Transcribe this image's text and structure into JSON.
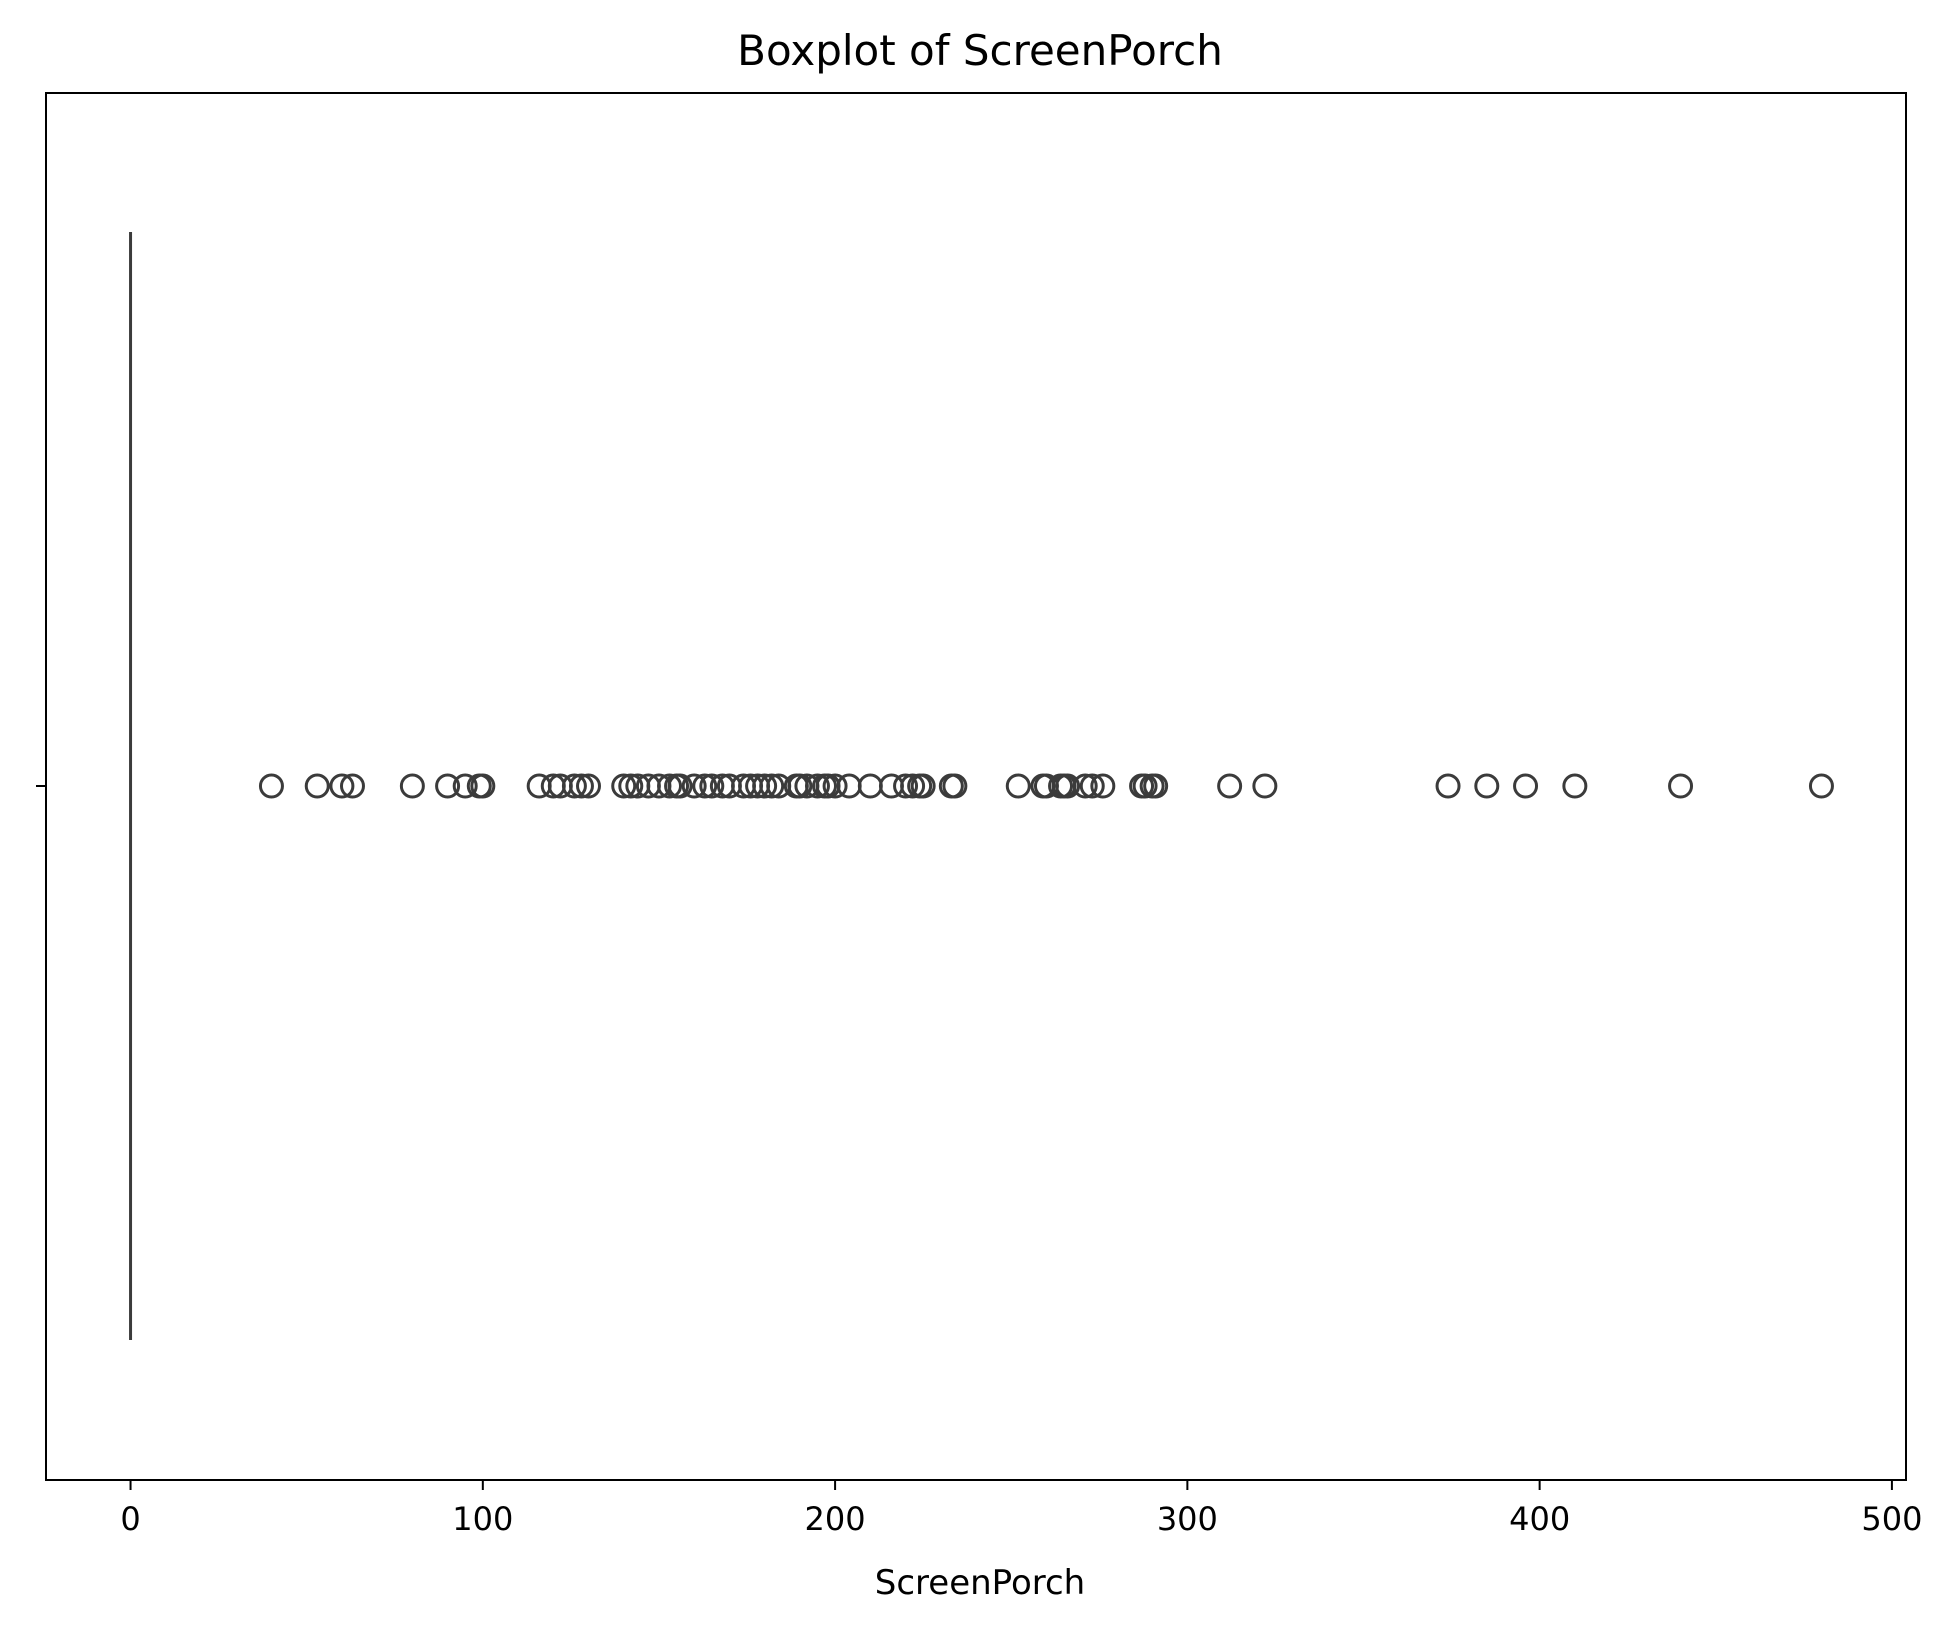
{
  "chart_data": {
    "type": "boxplot",
    "orientation": "horizontal",
    "title": "Boxplot of ScreenPorch",
    "xlabel": "ScreenPorch",
    "ylabel": "",
    "xlim": [
      -24,
      504
    ],
    "x_ticks": [
      0,
      100,
      200,
      300,
      400,
      500
    ],
    "x_tick_labels": [
      "0",
      "100",
      "200",
      "300",
      "400",
      "500"
    ],
    "grid": false,
    "box": {
      "min": 0,
      "q1": 0,
      "median": 0,
      "q3": 0,
      "max": 0
    },
    "outliers": [
      40,
      53,
      60,
      63,
      80,
      90,
      95,
      99,
      100,
      116,
      120,
      122,
      126,
      128,
      130,
      140,
      142,
      144,
      147,
      150,
      153,
      155,
      156,
      160,
      163,
      165,
      168,
      170,
      174,
      176,
      178,
      180,
      182,
      184,
      189,
      190,
      192,
      195,
      197,
      198,
      200,
      204,
      210,
      216,
      220,
      222,
      224,
      225,
      233,
      234,
      252,
      259,
      260,
      264,
      265,
      266,
      271,
      273,
      276,
      287,
      288,
      290,
      291,
      312,
      322,
      374,
      385,
      396,
      410,
      440,
      480
    ],
    "colors": {
      "line": "#3b3b3b",
      "axes": "#000000",
      "background": "#ffffff"
    }
  }
}
